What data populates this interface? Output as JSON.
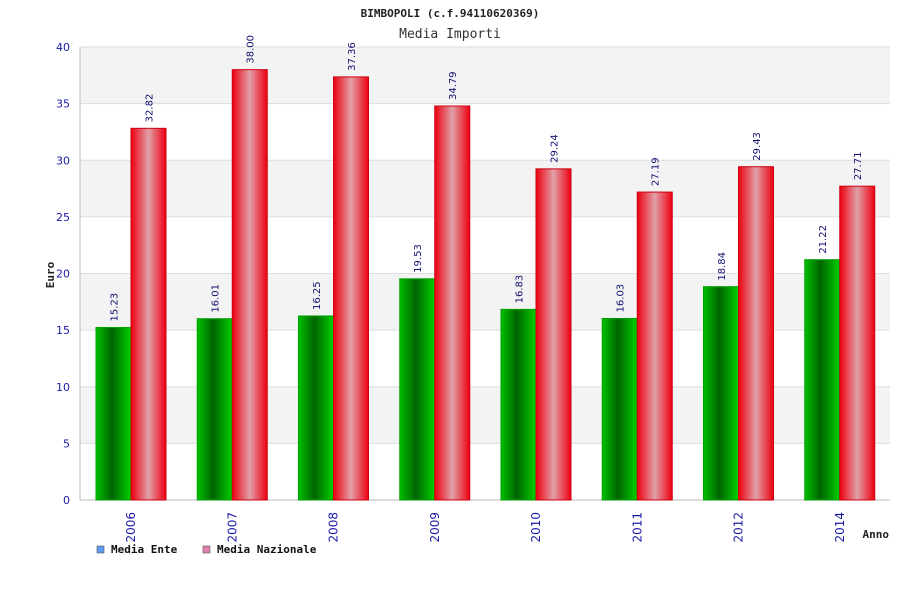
{
  "chart_data": {
    "type": "bar",
    "title": "BIMBOPOLI (c.f.94110620369)",
    "subtitle": "Media Importi",
    "xlabel": "Anno",
    "ylabel": "Euro",
    "ylim": [
      0,
      40
    ],
    "yticks": [
      0,
      5,
      10,
      15,
      20,
      25,
      30,
      35,
      40
    ],
    "grid": true,
    "legend_position": "bottom-left",
    "categories": [
      "2006",
      "2007",
      "2008",
      "2009",
      "2010",
      "2011",
      "2012",
      "2014"
    ],
    "series": [
      {
        "name": "Media Ente",
        "values": [
          15.23,
          16.01,
          16.25,
          19.53,
          16.83,
          16.03,
          18.84,
          21.22
        ],
        "labels": [
          "15.23",
          "16.01",
          "16.25",
          "19.53",
          "16.83",
          "16.03",
          "18.84",
          "21.22"
        ],
        "color": "#00b800",
        "legend_color": "#5b9bf0"
      },
      {
        "name": "Media Nazionale",
        "values": [
          32.82,
          38.0,
          37.36,
          34.79,
          29.24,
          27.19,
          29.43,
          27.71
        ],
        "labels": [
          "32.82",
          "38.00",
          "37.36",
          "34.79",
          "29.24",
          "27.19",
          "29.43",
          "27.71"
        ],
        "color": "#ee1122",
        "legend_color": "#e080b0"
      }
    ]
  }
}
